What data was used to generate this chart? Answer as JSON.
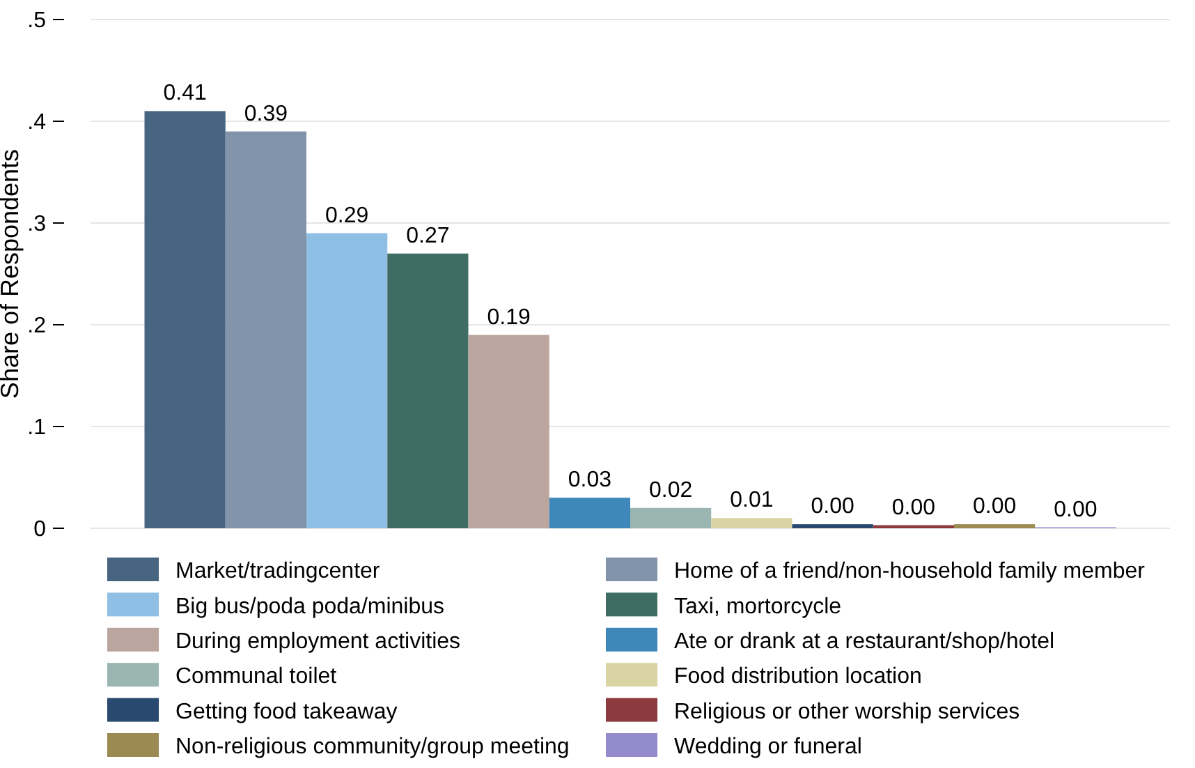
{
  "chart_data": {
    "type": "bar",
    "ylabel": "Share of Respondents",
    "categories": [
      null
    ],
    "ylim": [
      0,
      0.5
    ],
    "yticks": [
      {
        "value": 0,
        "label": "0"
      },
      {
        "value": 0.1,
        "label": ".1"
      },
      {
        "value": 0.2,
        "label": ".2"
      },
      {
        "value": 0.3,
        "label": ".3"
      },
      {
        "value": 0.4,
        "label": ".4"
      },
      {
        "value": 0.5,
        "label": ".5"
      }
    ],
    "grid": "y",
    "legend": "bottom",
    "series": [
      {
        "name": "Market/tradingcenter",
        "color": "#476580",
        "values": [
          0.41
        ],
        "value_labels": [
          "0.41"
        ]
      },
      {
        "name": "Home of a friend/non-household family member",
        "color": "#8194a9",
        "values": [
          0.39
        ],
        "value_labels": [
          "0.39"
        ]
      },
      {
        "name": "Big bus/poda poda/minibus",
        "color": "#90bfe5",
        "values": [
          0.29
        ],
        "value_labels": [
          "0.29"
        ]
      },
      {
        "name": "Taxi, mortorcycle",
        "color": "#3f6d63",
        "values": [
          0.27
        ],
        "value_labels": [
          "0.27"
        ]
      },
      {
        "name": "During employment activities",
        "color": "#bba59f",
        "values": [
          0.19
        ],
        "value_labels": [
          "0.19"
        ]
      },
      {
        "name": "Ate or drank at a restaurant/shop/hotel",
        "color": "#3d88b9",
        "values": [
          0.03
        ],
        "value_labels": [
          "0.03"
        ]
      },
      {
        "name": "Communal toilet",
        "color": "#9bb6b0",
        "values": [
          0.02
        ],
        "value_labels": [
          "0.02"
        ]
      },
      {
        "name": "Food distribution location",
        "color": "#d8d4a3",
        "values": [
          0.01
        ],
        "value_labels": [
          "0.01"
        ]
      },
      {
        "name": "Getting food takeaway",
        "color": "#29496e",
        "values": [
          0.004
        ],
        "value_labels": [
          "0.00"
        ]
      },
      {
        "name": "Religious or other worship services",
        "color": "#8c3a3e",
        "values": [
          0.003
        ],
        "value_labels": [
          "0.00"
        ]
      },
      {
        "name": "Non-religious community/group meeting",
        "color": "#9b8a52",
        "values": [
          0.004
        ],
        "value_labels": [
          "0.00"
        ]
      },
      {
        "name": "Wedding or funeral",
        "color": "#948bcc",
        "values": [
          0.001
        ],
        "value_labels": [
          "0.00"
        ]
      }
    ]
  }
}
